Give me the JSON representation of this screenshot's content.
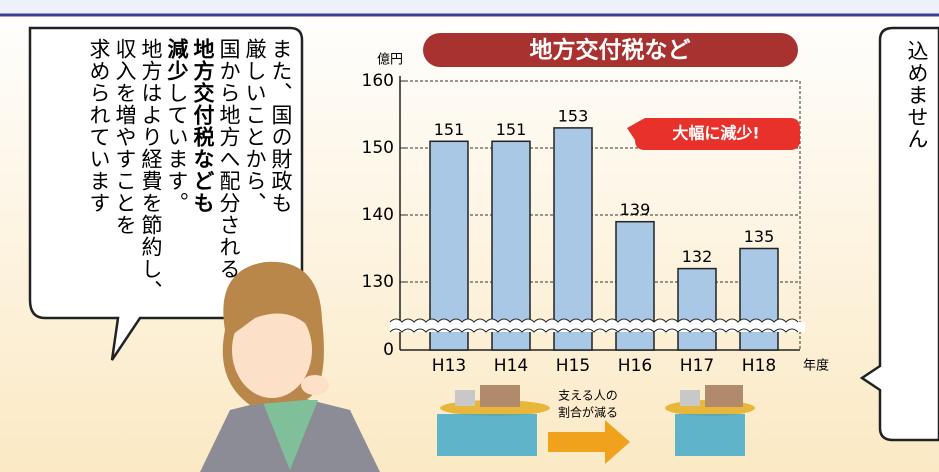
{
  "chart_data": {
    "type": "bar",
    "title": "地方交付税など",
    "y_unit": "億円",
    "x_unit": "年度",
    "categories": [
      "H13",
      "H14",
      "H15",
      "H16",
      "H17",
      "H18"
    ],
    "values": [
      151,
      151,
      153,
      139,
      132,
      135
    ],
    "color": "#a9c8e6",
    "ylim": [
      0,
      160
    ],
    "yticks": [
      0,
      130,
      140,
      150,
      160
    ],
    "grid": true,
    "axis_break": true,
    "annotation": "大幅に減少!",
    "illustration_caption": [
      "支える人の",
      "割合が減る"
    ]
  },
  "left_bubble": {
    "lines": [
      "また、国の財政も",
      "厳しいことから、",
      "国から地方へ配分される",
      "地方交付税なども"
    ],
    "bold_part": "減少",
    "rest_part": "しています。",
    "more_lines": [
      "地方はより経費を節約し、",
      "収入を増やすことを",
      "求められています"
    ]
  },
  "right_bubble": {
    "text": "込めません"
  }
}
